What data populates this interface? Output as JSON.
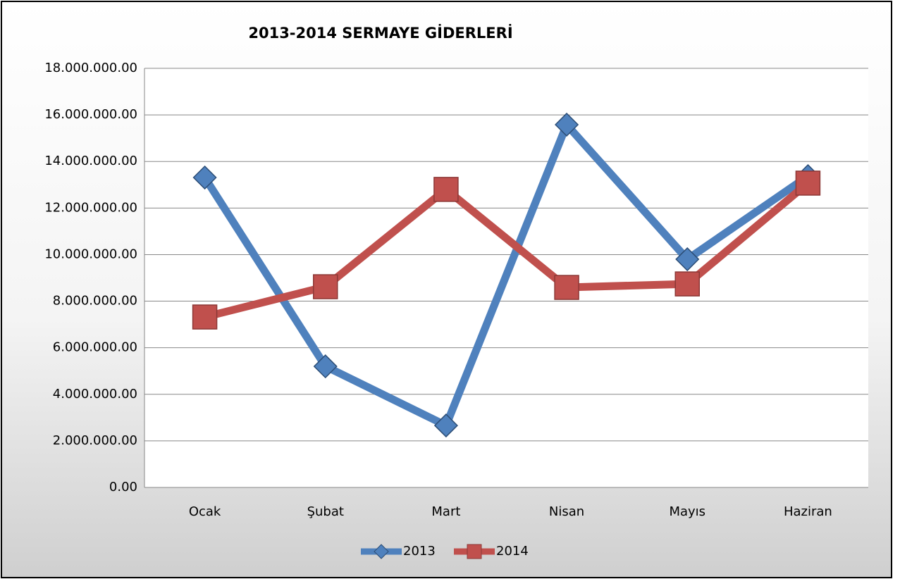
{
  "chart_data": {
    "type": "line",
    "title": "2013-2014 SERMAYE GİDERLERİ",
    "categories": [
      "Ocak",
      "Şubat",
      "Mart",
      "Nisan",
      "Mayıs",
      "Haziran"
    ],
    "series": [
      {
        "name": "2013",
        "color": "#4f81bd",
        "marker": "diamond",
        "values": [
          13310000,
          5200000,
          2660000,
          15580000,
          9800000,
          13370000
        ]
      },
      {
        "name": "2014",
        "color": "#c0504d",
        "marker": "square",
        "values": [
          7320000,
          8620000,
          12800000,
          8590000,
          8740000,
          13070000
        ]
      }
    ],
    "ylim": [
      0,
      18000000
    ],
    "yticks": [
      {
        "value": 0,
        "label": "0.00"
      },
      {
        "value": 2000000,
        "label": "2.000.000.00"
      },
      {
        "value": 4000000,
        "label": "4.000.000.00"
      },
      {
        "value": 6000000,
        "label": "6.000.000.00"
      },
      {
        "value": 8000000,
        "label": "8.000.000.00"
      },
      {
        "value": 10000000,
        "label": "10.000.000.00"
      },
      {
        "value": 12000000,
        "label": "12.000.000.00"
      },
      {
        "value": 14000000,
        "label": "14.000.000.00"
      },
      {
        "value": 16000000,
        "label": "16.000.000.00"
      },
      {
        "value": 18000000,
        "label": "18.000.000.00"
      }
    ],
    "grid": true,
    "legend": "bottom"
  }
}
